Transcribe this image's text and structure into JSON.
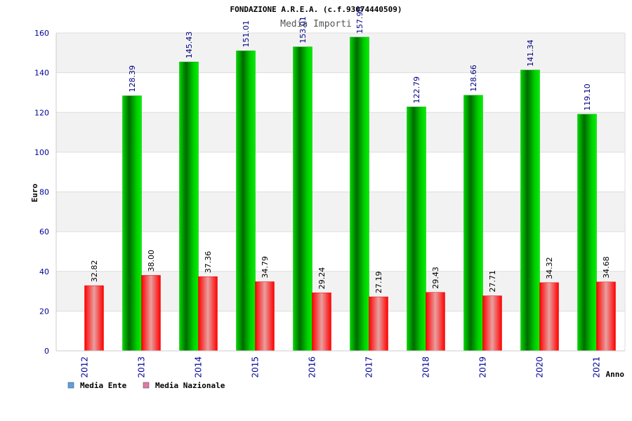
{
  "chart_data": {
    "type": "bar",
    "title": "FONDAZIONE A.R.E.A. (c.f.93074440509)",
    "subtitle": "Media Importi",
    "xlabel": "Anno",
    "ylabel": "Euro",
    "ylim": [
      0,
      160
    ],
    "yticks": [
      0,
      20,
      40,
      60,
      80,
      100,
      120,
      140,
      160
    ],
    "categories": [
      "2012",
      "2013",
      "2014",
      "2015",
      "2016",
      "2017",
      "2018",
      "2019",
      "2020",
      "2021"
    ],
    "series": [
      {
        "name": "Media Ente",
        "values": [
          null,
          128.39,
          145.43,
          151.01,
          153.01,
          157.9,
          122.79,
          128.66,
          141.34,
          119.1
        ],
        "labels": [
          "",
          "128.39",
          "145.43",
          "151.01",
          "153.01",
          "157.90",
          "122.79",
          "128.66",
          "141.34",
          "119.10"
        ],
        "color": "#00b000",
        "label_color": "#000080",
        "legend_color": "#5aa0e6"
      },
      {
        "name": "Media Nazionale",
        "values": [
          32.82,
          38.0,
          37.36,
          34.79,
          29.24,
          27.19,
          29.43,
          27.71,
          34.32,
          34.68
        ],
        "labels": [
          "32.82",
          "38.00",
          "37.36",
          "34.79",
          "29.24",
          "27.19",
          "29.43",
          "27.71",
          "34.32",
          "34.68"
        ],
        "color": "#ee0000",
        "label_color": "#000000",
        "legend_color": "#e07aa8"
      }
    ],
    "grid": true,
    "legend": "bottom-left"
  }
}
